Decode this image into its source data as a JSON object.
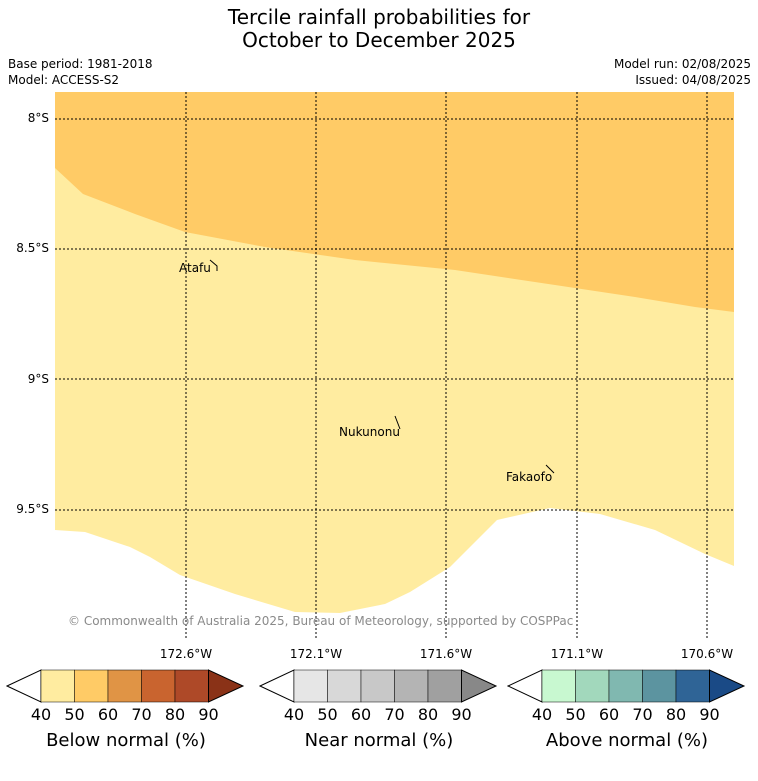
{
  "title": {
    "line1": "Tercile rainfall probabilities for",
    "line2": "October to December 2025"
  },
  "meta": {
    "base_period": "Base period: 1981-2018",
    "model": "Model: ACCESS-S2",
    "model_run": "Model run: 02/08/2025",
    "issued": "Issued: 04/08/2025"
  },
  "map": {
    "colors": {
      "below_40_50": "#ffeca0",
      "below_50_60": "#ffcb66",
      "background": "#ffffff",
      "grid": "#000000"
    },
    "lat_labels": [
      "8°S",
      "8.5°S",
      "9°S",
      "9.5°S"
    ],
    "lon_labels": [
      "172.6°W",
      "172.1°W",
      "171.6°W",
      "171.1°W",
      "170.6°W"
    ],
    "places": [
      "Atafu",
      "Nukunonu",
      "Fakaofo"
    ],
    "copyright": "© Commonwealth of Australia 2025, Bureau of Meteorology, supported by COSPPac"
  },
  "colorbars": [
    {
      "title": "Below normal (%)",
      "ticks": [
        "40",
        "50",
        "60",
        "70",
        "80",
        "90"
      ],
      "colors": [
        "#ffffff",
        "#ffeca0",
        "#ffcb66",
        "#e09445",
        "#c9642f",
        "#ae4928",
        "#8a3217"
      ]
    },
    {
      "title": "Near normal (%)",
      "ticks": [
        "40",
        "50",
        "60",
        "70",
        "80",
        "90"
      ],
      "colors": [
        "#ffffff",
        "#e6e6e6",
        "#d8d8d8",
        "#c8c8c8",
        "#b4b4b4",
        "#a0a0a0",
        "#888888"
      ]
    },
    {
      "title": "Above normal (%)",
      "ticks": [
        "40",
        "50",
        "60",
        "70",
        "80",
        "90"
      ],
      "colors": [
        "#ffffff",
        "#c8f8d0",
        "#a2d8bc",
        "#80b8b0",
        "#5c94a0",
        "#2f6496",
        "#1a4a86"
      ]
    }
  ]
}
